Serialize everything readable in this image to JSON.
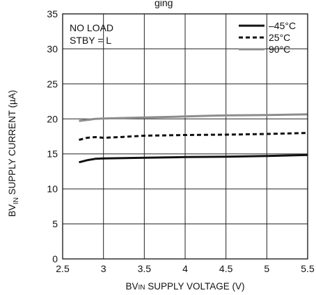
{
  "chart_data": {
    "type": "line",
    "title": "",
    "header_fragment": "ging",
    "xlabel": "BV",
    "xlabel_sub": "IN",
    "xlabel_rest": " SUPPLY VOLTAGE (V)",
    "ylabel": "BV",
    "ylabel_sub": "IN",
    "ylabel_rest": " SUPPLY CURRENT (µA)",
    "xlim": [
      2.5,
      5.5
    ],
    "ylim": [
      0,
      35
    ],
    "x_ticks": [
      2.5,
      3,
      3.5,
      4,
      4.5,
      5,
      5.5
    ],
    "x_tick_labels": [
      "2.5",
      "3",
      "3.5",
      "4",
      "4.5",
      "5",
      "5.5"
    ],
    "y_ticks": [
      0,
      5,
      10,
      15,
      20,
      25,
      30,
      35
    ],
    "y_tick_labels": [
      "0",
      "5",
      "10",
      "15",
      "20",
      "25",
      "30",
      "35"
    ],
    "grid": true,
    "legend_position": "top-right",
    "annotations": [
      "NO LOAD",
      "STBY = L"
    ],
    "series": [
      {
        "name": "–45°C",
        "color": "#111111",
        "style": "solid",
        "x": [
          2.7,
          2.8,
          2.9,
          3.0,
          3.5,
          4.0,
          4.5,
          5.0,
          5.5
        ],
        "y": [
          13.8,
          14.1,
          14.3,
          14.35,
          14.45,
          14.55,
          14.6,
          14.7,
          14.85
        ]
      },
      {
        "name": "25°C",
        "color": "#111111",
        "style": "dashed",
        "x": [
          2.7,
          2.8,
          2.9,
          3.0,
          3.2,
          3.5,
          4.0,
          4.5,
          5.0,
          5.5
        ],
        "y": [
          17.0,
          17.3,
          17.4,
          17.3,
          17.4,
          17.6,
          17.7,
          17.75,
          17.85,
          18.0
        ]
      },
      {
        "name": "90°C",
        "color": "#8c8c8c",
        "style": "solid",
        "x": [
          2.7,
          2.8,
          2.9,
          3.0,
          3.5,
          4.0,
          4.3,
          4.5,
          5.0,
          5.5
        ],
        "y": [
          19.7,
          19.85,
          20.0,
          20.05,
          20.2,
          20.35,
          20.45,
          20.5,
          20.55,
          20.65
        ]
      }
    ]
  }
}
